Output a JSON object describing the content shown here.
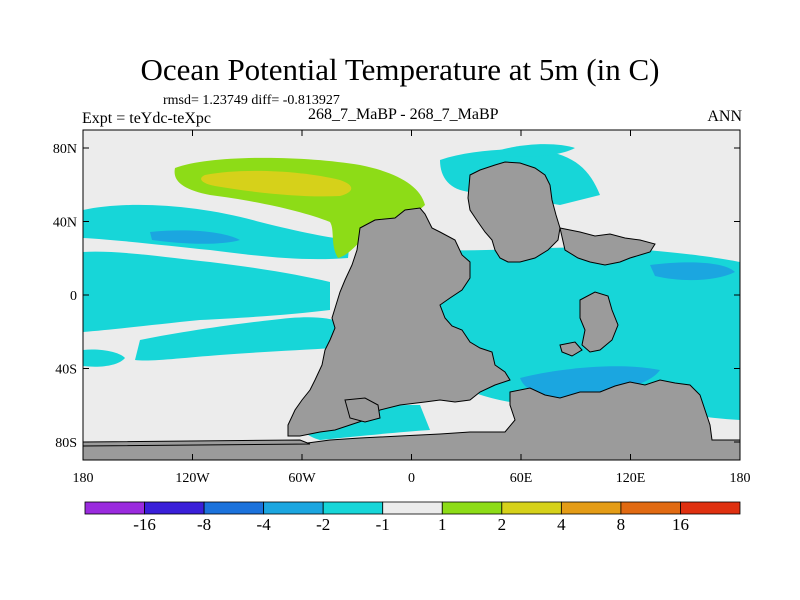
{
  "title": "Ocean Potential Temperature at 5m (in C)",
  "stats": "rmsd= 1.23749 diff= -0.813927",
  "expt": "Expt = teYdc-teXpc",
  "cases": "268_7_MaBP - 268_7_MaBP",
  "season": "ANN",
  "map": {
    "lon_ticks": [
      "180",
      "120W",
      "60W",
      "0",
      "60E",
      "120E",
      "180"
    ],
    "lat_ticks": [
      "80N",
      "40N",
      "0",
      "40S",
      "80S"
    ]
  },
  "colorbar": {
    "labels": [
      "-16",
      "-8",
      "-4",
      "-2",
      "-1",
      "1",
      "2",
      "4",
      "8",
      "16"
    ],
    "colors": [
      "#9a2bde",
      "#3a1fd9",
      "#1b72dc",
      "#1ba6e0",
      "#17d6d8",
      "#ececec",
      "#8ddc17",
      "#d6d11a",
      "#e49c16",
      "#e16a12",
      "#df3010"
    ]
  },
  "colors": {
    "land": "#9b9b9b",
    "neutral": "#ececec",
    "cyan": "#17d6d8",
    "light_blue": "#1ba6e0",
    "blue": "#1b72dc",
    "green": "#8ddc17",
    "yellow": "#d6d11a"
  }
}
